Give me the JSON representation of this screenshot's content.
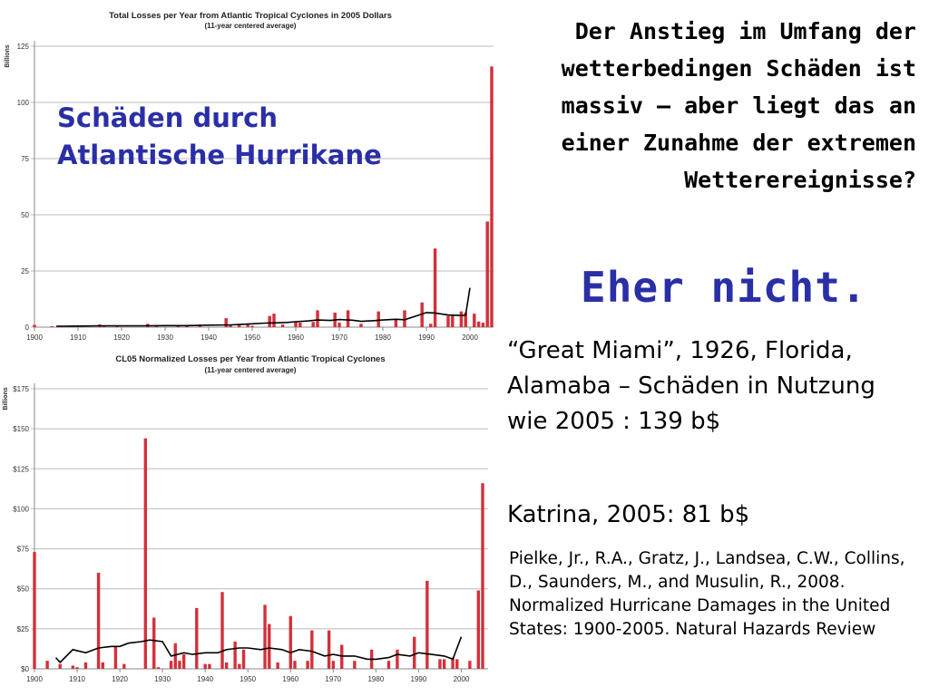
{
  "slide": {
    "headline": "Der Anstieg im Umfang der wetterbedingen Schäden ist massiv – aber liegt das an einer Zunahme der extremen Wetterereignisse?",
    "answer": "Eher nicht.",
    "overlay_title": "Schäden durch Atlantische Hurrikane",
    "miami_text": "“Great Miami”, 1926, Florida, Alamaba – Schäden in Nutzung wie 2005 : 139 b$",
    "katrina_text": "Katrina, 2005: 81 b$",
    "reference": "Pielke, Jr., R.A., Gratz, J., Landsea, C.W., Collins, D., Saunders, M., and Musulin, R., 2008. Normalized Hurricane Damages in the United States: 1900-2005. Natural Hazards Review",
    "colors": {
      "accent_blue": "#2b2fa6",
      "bar_red": "#d3313a",
      "line": "#000000",
      "grid": "#bbbbbb"
    }
  },
  "chart_data": [
    {
      "type": "bar",
      "title": "Total Losses per Year from Atlantic Tropical Cyclones in 2005 Dollars",
      "subtitle": "(11-year centered average)",
      "ylabel": "Billions",
      "ylim": [
        0,
        125
      ],
      "yticks": [
        0,
        25,
        50,
        75,
        100,
        125
      ],
      "ytick_labels": [
        "0",
        "25",
        "50",
        "75",
        "100",
        "125"
      ],
      "xlim": [
        1900,
        2005
      ],
      "xticks": [
        1900,
        1910,
        1920,
        1930,
        1940,
        1950,
        1960,
        1970,
        1980,
        1990,
        2000
      ],
      "xtick_labels": [
        "1900",
        "1910",
        "1920",
        "1930",
        "1940",
        "1950",
        "1960",
        "1970",
        "1980",
        "1990",
        "2000"
      ],
      "grid": true,
      "bars": [
        {
          "x": 1900,
          "y": 1
        },
        {
          "x": 1904,
          "y": 0.3
        },
        {
          "x": 1906,
          "y": 0.4
        },
        {
          "x": 1909,
          "y": 0.5
        },
        {
          "x": 1915,
          "y": 1.2
        },
        {
          "x": 1916,
          "y": 0.5
        },
        {
          "x": 1919,
          "y": 0.6
        },
        {
          "x": 1926,
          "y": 1.5
        },
        {
          "x": 1928,
          "y": 0.8
        },
        {
          "x": 1933,
          "y": 0.7
        },
        {
          "x": 1935,
          "y": 0.9
        },
        {
          "x": 1938,
          "y": 1.2
        },
        {
          "x": 1944,
          "y": 4
        },
        {
          "x": 1945,
          "y": 1
        },
        {
          "x": 1947,
          "y": 1.3
        },
        {
          "x": 1949,
          "y": 1
        },
        {
          "x": 1950,
          "y": 0.6
        },
        {
          "x": 1954,
          "y": 5
        },
        {
          "x": 1955,
          "y": 6
        },
        {
          "x": 1957,
          "y": 1.2
        },
        {
          "x": 1960,
          "y": 2.5
        },
        {
          "x": 1961,
          "y": 2
        },
        {
          "x": 1964,
          "y": 2.3
        },
        {
          "x": 1965,
          "y": 7.5
        },
        {
          "x": 1969,
          "y": 6.5
        },
        {
          "x": 1970,
          "y": 2
        },
        {
          "x": 1972,
          "y": 7.5
        },
        {
          "x": 1975,
          "y": 1.5
        },
        {
          "x": 1979,
          "y": 7
        },
        {
          "x": 1983,
          "y": 3.5
        },
        {
          "x": 1985,
          "y": 7.5
        },
        {
          "x": 1989,
          "y": 11
        },
        {
          "x": 1991,
          "y": 1.5
        },
        {
          "x": 1992,
          "y": 35
        },
        {
          "x": 1995,
          "y": 5
        },
        {
          "x": 1996,
          "y": 5
        },
        {
          "x": 1998,
          "y": 7
        },
        {
          "x": 1999,
          "y": 6.5
        },
        {
          "x": 2001,
          "y": 6
        },
        {
          "x": 2002,
          "y": 2.5
        },
        {
          "x": 2003,
          "y": 2
        },
        {
          "x": 2004,
          "y": 47
        },
        {
          "x": 2005,
          "y": 116
        }
      ],
      "series": [
        {
          "name": "11-year centered average",
          "points": [
            [
              1905,
              0.4
            ],
            [
              1910,
              0.5
            ],
            [
              1915,
              0.6
            ],
            [
              1920,
              0.6
            ],
            [
              1925,
              0.6
            ],
            [
              1930,
              0.7
            ],
            [
              1935,
              0.7
            ],
            [
              1940,
              0.9
            ],
            [
              1945,
              1
            ],
            [
              1948,
              1.3
            ],
            [
              1950,
              1.5
            ],
            [
              1953,
              1.8
            ],
            [
              1955,
              1.9
            ],
            [
              1958,
              2.1
            ],
            [
              1960,
              2.4
            ],
            [
              1963,
              2.8
            ],
            [
              1965,
              3.2
            ],
            [
              1968,
              3
            ],
            [
              1970,
              3.4
            ],
            [
              1973,
              3.1
            ],
            [
              1975,
              2.6
            ],
            [
              1978,
              2.9
            ],
            [
              1980,
              3.2
            ],
            [
              1983,
              3.5
            ],
            [
              1985,
              3.3
            ],
            [
              1988,
              5.2
            ],
            [
              1990,
              6.5
            ],
            [
              1992,
              6.3
            ],
            [
              1995,
              5.4
            ],
            [
              1998,
              5.2
            ],
            [
              1999,
              5.3
            ],
            [
              2000,
              17.5
            ]
          ]
        }
      ]
    },
    {
      "type": "bar",
      "title": "CL05 Normalized Losses per Year from Atlantic Tropical Cyclones",
      "subtitle": "(11-year centered average)",
      "ylabel": "Billions",
      "ylim": [
        0,
        175
      ],
      "yticks": [
        0,
        25,
        50,
        75,
        100,
        125,
        150,
        175
      ],
      "ytick_labels": [
        "$0",
        "$25",
        "$50",
        "$75",
        "$100",
        "$125",
        "$150",
        "$175"
      ],
      "xlim": [
        1900,
        2005
      ],
      "xticks": [
        1900,
        1910,
        1920,
        1930,
        1940,
        1950,
        1960,
        1970,
        1980,
        1990,
        2000
      ],
      "xtick_labels": [
        "1900",
        "1910",
        "1920",
        "1930",
        "1940",
        "1950",
        "1960",
        "1970",
        "1980",
        "1990",
        "2000"
      ],
      "grid": true,
      "bars": [
        {
          "x": 1900,
          "y": 73
        },
        {
          "x": 1903,
          "y": 5
        },
        {
          "x": 1906,
          "y": 3
        },
        {
          "x": 1909,
          "y": 2
        },
        {
          "x": 1910,
          "y": 1
        },
        {
          "x": 1912,
          "y": 4
        },
        {
          "x": 1915,
          "y": 60
        },
        {
          "x": 1916,
          "y": 4
        },
        {
          "x": 1919,
          "y": 14
        },
        {
          "x": 1921,
          "y": 3
        },
        {
          "x": 1926,
          "y": 144
        },
        {
          "x": 1928,
          "y": 32
        },
        {
          "x": 1929,
          "y": 1
        },
        {
          "x": 1932,
          "y": 5
        },
        {
          "x": 1933,
          "y": 16
        },
        {
          "x": 1934,
          "y": 5
        },
        {
          "x": 1935,
          "y": 9
        },
        {
          "x": 1938,
          "y": 38
        },
        {
          "x": 1940,
          "y": 3
        },
        {
          "x": 1941,
          "y": 3
        },
        {
          "x": 1944,
          "y": 48
        },
        {
          "x": 1945,
          "y": 4
        },
        {
          "x": 1947,
          "y": 17
        },
        {
          "x": 1948,
          "y": 3
        },
        {
          "x": 1949,
          "y": 12
        },
        {
          "x": 1954,
          "y": 40
        },
        {
          "x": 1955,
          "y": 28
        },
        {
          "x": 1957,
          "y": 4
        },
        {
          "x": 1960,
          "y": 33
        },
        {
          "x": 1961,
          "y": 5
        },
        {
          "x": 1964,
          "y": 5
        },
        {
          "x": 1965,
          "y": 24
        },
        {
          "x": 1969,
          "y": 24
        },
        {
          "x": 1970,
          "y": 5
        },
        {
          "x": 1972,
          "y": 15
        },
        {
          "x": 1975,
          "y": 5
        },
        {
          "x": 1979,
          "y": 12
        },
        {
          "x": 1983,
          "y": 5
        },
        {
          "x": 1985,
          "y": 12
        },
        {
          "x": 1989,
          "y": 20
        },
        {
          "x": 1992,
          "y": 55
        },
        {
          "x": 1995,
          "y": 6
        },
        {
          "x": 1996,
          "y": 6
        },
        {
          "x": 1998,
          "y": 7
        },
        {
          "x": 1999,
          "y": 6
        },
        {
          "x": 2002,
          "y": 5
        },
        {
          "x": 2004,
          "y": 49
        },
        {
          "x": 2005,
          "y": 116
        }
      ],
      "series": [
        {
          "name": "11-year centered average",
          "points": [
            [
              1905,
              7
            ],
            [
              1906,
              4
            ],
            [
              1909,
              12
            ],
            [
              1912,
              10
            ],
            [
              1915,
              13
            ],
            [
              1918,
              14
            ],
            [
              1920,
              14
            ],
            [
              1922,
              16
            ],
            [
              1925,
              17
            ],
            [
              1927,
              18
            ],
            [
              1930,
              17
            ],
            [
              1932,
              8
            ],
            [
              1935,
              10
            ],
            [
              1937,
              9
            ],
            [
              1940,
              10
            ],
            [
              1943,
              10
            ],
            [
              1945,
              12
            ],
            [
              1948,
              13
            ],
            [
              1950,
              13
            ],
            [
              1953,
              12
            ],
            [
              1955,
              13
            ],
            [
              1958,
              12
            ],
            [
              1960,
              10
            ],
            [
              1962,
              12
            ],
            [
              1965,
              11
            ],
            [
              1968,
              8
            ],
            [
              1970,
              9
            ],
            [
              1972,
              8
            ],
            [
              1975,
              8
            ],
            [
              1978,
              6
            ],
            [
              1980,
              6
            ],
            [
              1983,
              7
            ],
            [
              1985,
              9
            ],
            [
              1988,
              8
            ],
            [
              1990,
              10
            ],
            [
              1993,
              9
            ],
            [
              1996,
              8
            ],
            [
              1998,
              6
            ],
            [
              2000,
              20
            ]
          ]
        }
      ]
    }
  ]
}
